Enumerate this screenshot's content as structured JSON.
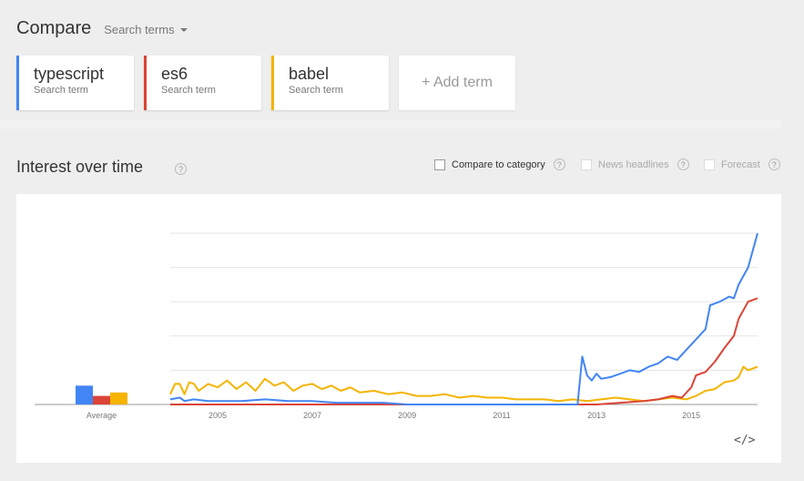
{
  "header": {
    "title": "Compare",
    "search_terms_label": "Search terms"
  },
  "terms": [
    {
      "name": "typescript",
      "sub": "Search term",
      "color": "#4285f4"
    },
    {
      "name": "es6",
      "sub": "Search term",
      "color": "#db4437"
    },
    {
      "name": "babel",
      "sub": "Search term",
      "color": "#f4b400"
    }
  ],
  "add_term_label": "+ Add term",
  "interest": {
    "title": "Interest over time",
    "help": "?",
    "options": [
      {
        "label": "Compare to category",
        "enabled": true
      },
      {
        "label": "News headlines",
        "enabled": false
      },
      {
        "label": "Forecast",
        "enabled": false
      }
    ]
  },
  "embed_label": "</>",
  "chart_data": {
    "type": "line",
    "x_ticks": [
      "2005",
      "2007",
      "2009",
      "2011",
      "2013",
      "2015"
    ],
    "average_label": "Average",
    "averages": [
      11,
      5,
      7
    ],
    "ylim": [
      0,
      100
    ],
    "grid": true,
    "series": [
      {
        "name": "typescript",
        "color": "#4285f4",
        "points": [
          [
            2004.0,
            3
          ],
          [
            2004.2,
            4
          ],
          [
            2004.3,
            2
          ],
          [
            2004.5,
            3
          ],
          [
            2004.8,
            2
          ],
          [
            2005,
            2
          ],
          [
            2005.5,
            2
          ],
          [
            2006,
            3
          ],
          [
            2006.5,
            2
          ],
          [
            2007,
            2
          ],
          [
            2007.5,
            1
          ],
          [
            2008,
            1
          ],
          [
            2008.5,
            1
          ],
          [
            2009,
            0
          ],
          [
            2010,
            0
          ],
          [
            2011,
            0
          ],
          [
            2012,
            0
          ],
          [
            2012.6,
            0
          ],
          [
            2012.7,
            28
          ],
          [
            2012.8,
            17
          ],
          [
            2012.9,
            14
          ],
          [
            2013.0,
            18
          ],
          [
            2013.1,
            15
          ],
          [
            2013.3,
            16
          ],
          [
            2013.5,
            18
          ],
          [
            2013.7,
            20
          ],
          [
            2013.9,
            19
          ],
          [
            2014.1,
            22
          ],
          [
            2014.3,
            24
          ],
          [
            2014.5,
            28
          ],
          [
            2014.7,
            26
          ],
          [
            2014.9,
            32
          ],
          [
            2015.1,
            38
          ],
          [
            2015.3,
            44
          ],
          [
            2015.4,
            58
          ],
          [
            2015.6,
            60
          ],
          [
            2015.8,
            63
          ],
          [
            2015.9,
            62
          ],
          [
            2016.0,
            70
          ],
          [
            2016.2,
            80
          ],
          [
            2016.3,
            90
          ],
          [
            2016.4,
            100
          ]
        ]
      },
      {
        "name": "es6",
        "color": "#db4437",
        "points": [
          [
            2004.0,
            0
          ],
          [
            2008,
            0
          ],
          [
            2012,
            0
          ],
          [
            2013,
            0
          ],
          [
            2013.5,
            1
          ],
          [
            2014.0,
            2
          ],
          [
            2014.3,
            3
          ],
          [
            2014.6,
            5
          ],
          [
            2014.8,
            4
          ],
          [
            2015.0,
            10
          ],
          [
            2015.1,
            17
          ],
          [
            2015.3,
            19
          ],
          [
            2015.5,
            25
          ],
          [
            2015.7,
            33
          ],
          [
            2015.9,
            40
          ],
          [
            2016.0,
            50
          ],
          [
            2016.2,
            60
          ],
          [
            2016.4,
            62
          ]
        ]
      },
      {
        "name": "babel",
        "color": "#f4b400",
        "points": [
          [
            2004.0,
            6
          ],
          [
            2004.1,
            12
          ],
          [
            2004.2,
            12
          ],
          [
            2004.3,
            6
          ],
          [
            2004.4,
            13
          ],
          [
            2004.5,
            12
          ],
          [
            2004.6,
            8
          ],
          [
            2004.8,
            12
          ],
          [
            2005.0,
            10
          ],
          [
            2005.2,
            14
          ],
          [
            2005.4,
            9
          ],
          [
            2005.6,
            13
          ],
          [
            2005.8,
            8
          ],
          [
            2006.0,
            15
          ],
          [
            2006.2,
            11
          ],
          [
            2006.4,
            13
          ],
          [
            2006.6,
            8
          ],
          [
            2006.8,
            11
          ],
          [
            2007.0,
            12
          ],
          [
            2007.2,
            9
          ],
          [
            2007.4,
            11
          ],
          [
            2007.6,
            8
          ],
          [
            2007.8,
            10
          ],
          [
            2008.0,
            7
          ],
          [
            2008.3,
            8
          ],
          [
            2008.6,
            6
          ],
          [
            2008.9,
            7
          ],
          [
            2009.2,
            5
          ],
          [
            2009.5,
            5
          ],
          [
            2009.8,
            6
          ],
          [
            2010.1,
            4
          ],
          [
            2010.4,
            5
          ],
          [
            2010.7,
            4
          ],
          [
            2011.0,
            4
          ],
          [
            2011.3,
            3
          ],
          [
            2011.6,
            3
          ],
          [
            2011.9,
            3
          ],
          [
            2012.2,
            2
          ],
          [
            2012.5,
            3
          ],
          [
            2012.8,
            2
          ],
          [
            2013.1,
            3
          ],
          [
            2013.4,
            4
          ],
          [
            2013.7,
            3
          ],
          [
            2014.0,
            2
          ],
          [
            2014.3,
            3
          ],
          [
            2014.6,
            4
          ],
          [
            2014.9,
            3
          ],
          [
            2015.1,
            5
          ],
          [
            2015.3,
            8
          ],
          [
            2015.5,
            9
          ],
          [
            2015.7,
            13
          ],
          [
            2015.9,
            14
          ],
          [
            2016.0,
            16
          ],
          [
            2016.1,
            22
          ],
          [
            2016.2,
            20
          ],
          [
            2016.4,
            22
          ]
        ]
      }
    ]
  }
}
